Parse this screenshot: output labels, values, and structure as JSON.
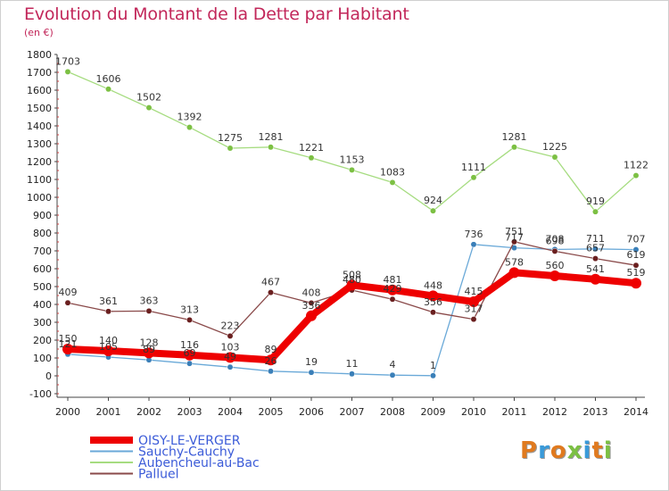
{
  "title": "Evolution du Montant de la Dette par Habitant",
  "unit": "(en €)",
  "logo": {
    "text": "Proxiti",
    "letter_colors": [
      "#e07a1f",
      "#3a9ad9",
      "#e07a1f",
      "#7cc043",
      "#3a9ad9",
      "#e07a1f",
      "#7cc043"
    ]
  },
  "chart_data": {
    "type": "line",
    "categories": [
      "2000",
      "2001",
      "2002",
      "2003",
      "2004",
      "2005",
      "2006",
      "2007",
      "2008",
      "2009",
      "2010",
      "2011",
      "2012",
      "2013",
      "2014"
    ],
    "ylim": [
      -100,
      1800
    ],
    "yticks": [
      -100,
      0,
      100,
      200,
      300,
      400,
      500,
      600,
      700,
      800,
      900,
      1000,
      1100,
      1200,
      1300,
      1400,
      1500,
      1600,
      1700,
      1800
    ],
    "grid": false,
    "legend_position": "bottom-left",
    "series": [
      {
        "name": "OISY-LE-VERGER",
        "color": "#ee0000",
        "marker": "#ee0000",
        "emphasis": true,
        "values": [
          150,
          140,
          128,
          116,
          103,
          89,
          336,
          508,
          481,
          448,
          415,
          578,
          560,
          541,
          519
        ],
        "labels": [
          "150",
          "140",
          "128",
          "116",
          "103",
          "89",
          "336",
          "508",
          "481",
          "448",
          "415",
          "578",
          "560",
          "541",
          "519"
        ]
      },
      {
        "name": "Sauchy-Cauchy",
        "color": "#6aa9d8",
        "marker": "#3a7fb8",
        "emphasis": false,
        "values": [
          121,
          105,
          89,
          69,
          49,
          26,
          19,
          11,
          4,
          1,
          736,
          717,
          708,
          711,
          707
        ],
        "labels": [
          "121",
          "105",
          "89",
          "69",
          "49",
          "26",
          "19",
          "11",
          "4",
          "1",
          "736",
          "717",
          "708",
          "711",
          "707"
        ]
      },
      {
        "name": "Aubencheul-au-Bac",
        "color": "#a6dc80",
        "marker": "#7cc043",
        "emphasis": false,
        "values": [
          1703,
          1606,
          1502,
          1392,
          1275,
          1281,
          1221,
          1153,
          1083,
          924,
          1111,
          1281,
          1225,
          919,
          1122
        ],
        "labels": [
          "1703",
          "1606",
          "1502",
          "1392",
          "1275",
          "1281",
          "1221",
          "1153",
          "1083",
          "924",
          "1111",
          "1281",
          "1225",
          "919",
          "1122"
        ]
      },
      {
        "name": "Palluel",
        "color": "#8a4a4a",
        "marker": "#6a1f1f",
        "emphasis": false,
        "values": [
          409,
          361,
          363,
          313,
          223,
          467,
          408,
          480,
          429,
          356,
          317,
          751,
          698,
          657,
          619
        ],
        "labels": [
          "409",
          "361",
          "363",
          "313",
          "223",
          "467",
          "408",
          "480",
          "429",
          "356",
          "317",
          "751",
          "698",
          "657",
          "619"
        ]
      }
    ]
  }
}
